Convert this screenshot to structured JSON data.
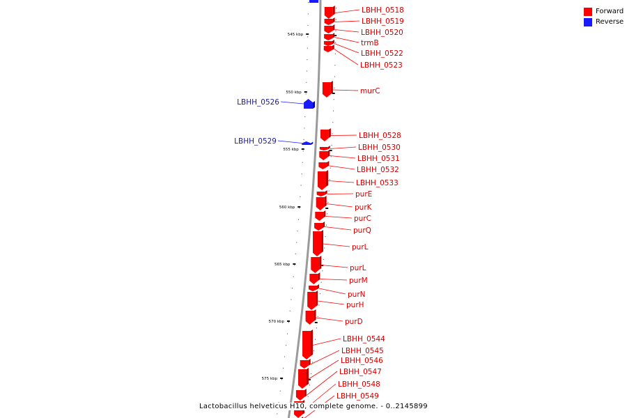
{
  "colors": {
    "forward": "#ff0000",
    "forward_label": "#cc0000",
    "reverse": "#1a1aff",
    "reverse_label": "#1a1a99",
    "backbone": "#9a9a9a"
  },
  "legend": {
    "forward_label": "Forward",
    "reverse_label": "Reverse"
  },
  "caption": "Lactobacillus helveticus H10, complete genome. - 0..2145899",
  "scale_labels": [
    "545 kbp",
    "550 kbp",
    "555 kbp",
    "560 kbp",
    "565 kbp",
    "570 kbp",
    "575 kbp"
  ],
  "genes": [
    {
      "name": "LBHH_0518",
      "strand": "forward"
    },
    {
      "name": "LBHH_0519",
      "strand": "forward"
    },
    {
      "name": "LBHH_0520",
      "strand": "forward"
    },
    {
      "name": "trmB",
      "strand": "forward"
    },
    {
      "name": "LBHH_0522",
      "strand": "forward"
    },
    {
      "name": "LBHH_0523",
      "strand": "forward"
    },
    {
      "name": "murC",
      "strand": "forward"
    },
    {
      "name": "LBHH_0526",
      "strand": "reverse"
    },
    {
      "name": "LBHH_0528",
      "strand": "forward"
    },
    {
      "name": "LBHH_0529",
      "strand": "reverse"
    },
    {
      "name": "LBHH_0530",
      "strand": "forward"
    },
    {
      "name": "LBHH_0531",
      "strand": "forward"
    },
    {
      "name": "LBHH_0532",
      "strand": "forward"
    },
    {
      "name": "LBHH_0533",
      "strand": "forward"
    },
    {
      "name": "purE",
      "strand": "forward"
    },
    {
      "name": "purK",
      "strand": "forward"
    },
    {
      "name": "purC",
      "strand": "forward"
    },
    {
      "name": "purQ",
      "strand": "forward"
    },
    {
      "name": "purL",
      "strand": "forward"
    },
    {
      "name": "purL",
      "strand": "forward"
    },
    {
      "name": "purM",
      "strand": "forward"
    },
    {
      "name": "purN",
      "strand": "forward"
    },
    {
      "name": "purH",
      "strand": "forward"
    },
    {
      "name": "purD",
      "strand": "forward"
    },
    {
      "name": "LBHH_0544",
      "strand": "forward"
    },
    {
      "name": "LBHH_0545",
      "strand": "forward"
    },
    {
      "name": "LBHH_0546",
      "strand": "forward"
    },
    {
      "name": "LBHH_0547",
      "strand": "forward"
    },
    {
      "name": "LBHH_0548",
      "strand": "forward"
    },
    {
      "name": "LBHH_0549",
      "strand": "forward"
    }
  ]
}
